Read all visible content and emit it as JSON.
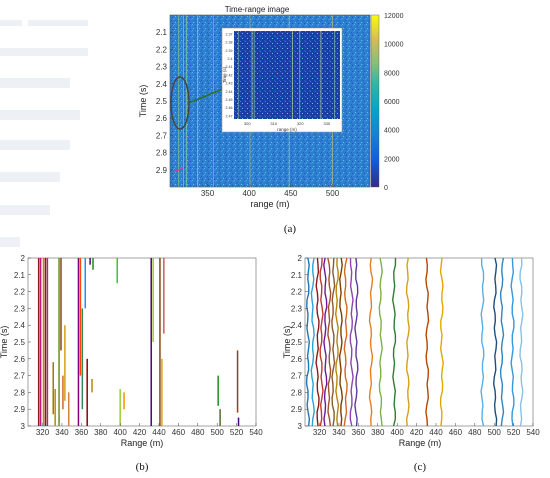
{
  "chart_data": [
    {
      "id": "a",
      "type": "heatmap",
      "title": "Time-range image",
      "xlabel": "range (m)",
      "ylabel": "Time (s)",
      "xlim": [
        305,
        545
      ],
      "ylim": [
        2,
        3
      ],
      "x_ticks": [
        350,
        400,
        450,
        500
      ],
      "y_ticks": [
        2.1,
        2.2,
        2.3,
        2.4,
        2.5,
        2.6,
        2.7,
        2.8,
        2.9
      ],
      "colorbar": {
        "ticks": [
          0,
          2000,
          4000,
          6000,
          8000,
          10000,
          12000
        ],
        "range": [
          0,
          12000
        ]
      },
      "inset": {
        "x_ticks": [
          300,
          310,
          320,
          330
        ],
        "xlabel": "range (m)",
        "ylabel": "Time (s)",
        "y_ticks": [
          2.37,
          2.38,
          2.39,
          2.4,
          2.41,
          2.42,
          2.43,
          2.44,
          2.45,
          2.46,
          2.47
        ]
      },
      "bright_lines_x": [
        315,
        321,
        325,
        338,
        357,
        401,
        448,
        500
      ]
    },
    {
      "id": "b",
      "type": "line",
      "xlabel": "Range (m)",
      "ylabel": "Time (s)",
      "xlim": [
        305,
        540
      ],
      "ylim": [
        2,
        3
      ],
      "x_ticks": [
        320,
        340,
        360,
        380,
        400,
        420,
        440,
        460,
        480,
        500,
        520,
        540
      ],
      "y_ticks": [
        2,
        2.1,
        2.2,
        2.3,
        2.4,
        2.5,
        2.6,
        2.7,
        2.8,
        2.9,
        3
      ],
      "segments": [
        {
          "x": 316,
          "y0": 2.0,
          "y1": 3.0,
          "color": "#8b1a1a"
        },
        {
          "x": 318,
          "y0": 2.0,
          "y1": 3.0,
          "color": "#c71585"
        },
        {
          "x": 321,
          "y0": 2.0,
          "y1": 3.0,
          "color": "#e07b00"
        },
        {
          "x": 323,
          "y0": 2.0,
          "y1": 3.0,
          "color": "#7a1f1f"
        },
        {
          "x": 325,
          "y0": 2.0,
          "y1": 3.0,
          "color": "#b03060"
        },
        {
          "x": 331,
          "y0": 2.62,
          "y1": 2.93,
          "color": "#9e7a00"
        },
        {
          "x": 333,
          "y0": 2.78,
          "y1": 3.0,
          "color": "#b8860b"
        },
        {
          "x": 337,
          "y0": 2.0,
          "y1": 3.0,
          "color": "#6b8e23"
        },
        {
          "x": 339,
          "y0": 2.0,
          "y1": 2.55,
          "color": "#8b4513"
        },
        {
          "x": 341,
          "y0": 2.7,
          "y1": 2.9,
          "color": "#d2691e"
        },
        {
          "x": 343,
          "y0": 2.4,
          "y1": 2.85,
          "color": "#d4a017"
        },
        {
          "x": 347,
          "y0": 2.8,
          "y1": 3.0,
          "color": "#cd853f"
        },
        {
          "x": 357,
          "y0": 2.0,
          "y1": 3.0,
          "color": "#800080"
        },
        {
          "x": 359,
          "y0": 2.0,
          "y1": 2.7,
          "color": "#ff4500"
        },
        {
          "x": 361,
          "y0": 2.3,
          "y1": 2.9,
          "color": "#2e8b57"
        },
        {
          "x": 364,
          "y0": 2.0,
          "y1": 2.3,
          "color": "#1e90ff"
        },
        {
          "x": 366,
          "y0": 2.6,
          "y1": 3.0,
          "color": "#8b0000"
        },
        {
          "x": 369,
          "y0": 2.0,
          "y1": 2.04,
          "color": "#4b0082"
        },
        {
          "x": 371,
          "y0": 2.72,
          "y1": 2.8,
          "color": "#b8860b"
        },
        {
          "x": 372,
          "y0": 2.0,
          "y1": 2.07,
          "color": "#228b22"
        },
        {
          "x": 397,
          "y0": 2.0,
          "y1": 2.15,
          "color": "#32cd32"
        },
        {
          "x": 400,
          "y0": 2.78,
          "y1": 3.0,
          "color": "#9acd32"
        },
        {
          "x": 404,
          "y0": 2.8,
          "y1": 2.9,
          "color": "#ff8c00"
        },
        {
          "x": 432,
          "y0": 2.0,
          "y1": 3.0,
          "color": "#4b0082"
        },
        {
          "x": 434,
          "y0": 2.0,
          "y1": 2.5,
          "color": "#9ACD32"
        },
        {
          "x": 441,
          "y0": 2.0,
          "y1": 3.0,
          "color": "#8b4513"
        },
        {
          "x": 443,
          "y0": 2.6,
          "y1": 3.0,
          "color": "#daa520"
        },
        {
          "x": 445,
          "y0": 2.0,
          "y1": 2.45,
          "color": "#cd5c5c"
        },
        {
          "x": 501,
          "y0": 2.7,
          "y1": 2.88,
          "color": "#228b22"
        },
        {
          "x": 503,
          "y0": 2.9,
          "y1": 3.0,
          "color": "#556b2f"
        },
        {
          "x": 521,
          "y0": 2.55,
          "y1": 2.92,
          "color": "#8b4513"
        },
        {
          "x": 522,
          "y0": 2.95,
          "y1": 3.0,
          "color": "#4b0082"
        }
      ]
    },
    {
      "id": "c",
      "type": "line",
      "xlabel": "Range (m)",
      "ylabel": "Time (s)",
      "xlim": [
        305,
        540
      ],
      "ylim": [
        2,
        3
      ],
      "x_ticks": [
        320,
        340,
        360,
        380,
        400,
        420,
        440,
        460,
        480,
        500,
        520,
        540
      ],
      "y_ticks": [
        2,
        2.1,
        2.2,
        2.3,
        2.4,
        2.5,
        2.6,
        2.7,
        2.8,
        2.9,
        3
      ],
      "tracks": [
        {
          "x": 308,
          "color": "#1f77b4"
        },
        {
          "x": 313,
          "color": "#2ca0d8"
        },
        {
          "x": 318,
          "color": "#8b1a1a"
        },
        {
          "x": 322,
          "color": "#c0392b"
        },
        {
          "x": 326,
          "color": "#6a1b9a"
        },
        {
          "x": 330,
          "color": "#a0522d"
        },
        {
          "x": 334,
          "color": "#8b5a2b"
        },
        {
          "x": 338,
          "color": "#b8860b"
        },
        {
          "x": 342,
          "color": "#7b3f00"
        },
        {
          "x": 347,
          "color": "#d2691e"
        },
        {
          "x": 353,
          "color": "#8e44ad"
        },
        {
          "x": 358,
          "color": "#5d3a9b"
        },
        {
          "x": 373,
          "color": "#e67e22"
        },
        {
          "x": 383,
          "color": "#7cb342"
        },
        {
          "x": 397,
          "color": "#2e7d32"
        },
        {
          "x": 411,
          "color": "#d4a017"
        },
        {
          "x": 431,
          "color": "#b34700"
        },
        {
          "x": 446,
          "color": "#e0a800"
        },
        {
          "x": 488,
          "color": "#5dade2"
        },
        {
          "x": 501,
          "color": "#1f4e79"
        },
        {
          "x": 508,
          "color": "#2e86c1"
        },
        {
          "x": 519,
          "color": "#3498db"
        },
        {
          "x": 528,
          "color": "#85c1e9"
        }
      ]
    }
  ],
  "captions": {
    "a": "(a)",
    "b": "(b)",
    "c": "(c)"
  }
}
